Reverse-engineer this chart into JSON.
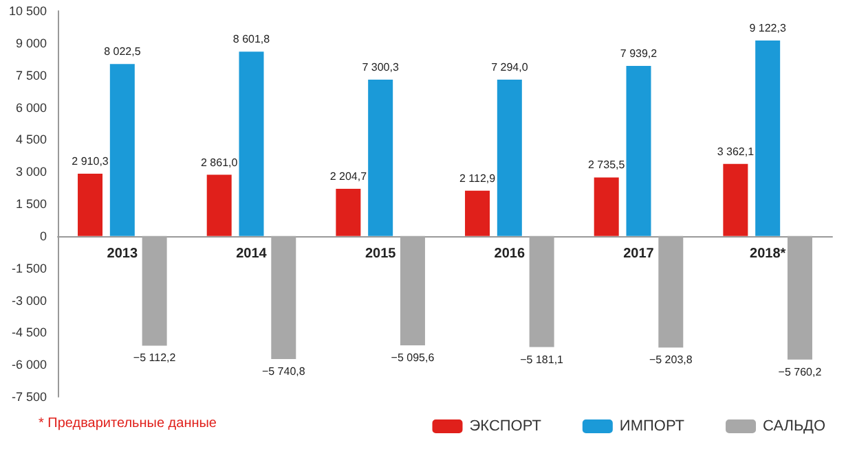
{
  "chart_data": {
    "type": "bar",
    "categories": [
      "2013",
      "2014",
      "2015",
      "2016",
      "2017",
      "2018*"
    ],
    "series": [
      {
        "name": "ЭКСПОРТ",
        "color": "#e0201b",
        "values": [
          2910.3,
          2861.0,
          2204.7,
          2112.9,
          2735.5,
          3362.1
        ],
        "value_labels": [
          "2 910,3",
          "2 861,0",
          "2 204,7",
          "2 112,9",
          "2 735,5",
          "3 362,1"
        ]
      },
      {
        "name": "ИМПОРТ",
        "color": "#1b9ad8",
        "values": [
          8022.5,
          8601.8,
          7300.3,
          7294.0,
          7939.2,
          9122.3
        ],
        "value_labels": [
          "8 022,5",
          "8 601,8",
          "7 300,3",
          "7 294,0",
          "7 939,2",
          "9 122,3"
        ]
      },
      {
        "name": "САЛЬДО",
        "color": "#a8a8a8",
        "values": [
          -5112.2,
          -5740.8,
          -5095.6,
          -5181.1,
          -5203.8,
          -5760.2
        ],
        "value_labels": [
          "−5 112,2",
          "−5 740,8",
          "−5 095,6",
          "−5 181,1",
          "−5 203,8",
          "−5 760,2"
        ]
      }
    ],
    "ylim": [
      -7500,
      10500
    ],
    "yticks": [
      {
        "value": -7500,
        "label": "-7 500"
      },
      {
        "value": -6000,
        "label": "-6 000"
      },
      {
        "value": -4500,
        "label": "-4 500"
      },
      {
        "value": -3000,
        "label": "-3 000"
      },
      {
        "value": -1500,
        "label": "-1 500"
      },
      0,
      {
        "value": 1500,
        "label": "1 500"
      },
      {
        "value": 3000,
        "label": "3 000"
      },
      {
        "value": 4500,
        "label": "4 500"
      },
      {
        "value": 6000,
        "label": "6 000"
      },
      {
        "value": 7500,
        "label": "7 500"
      },
      {
        "value": 9000,
        "label": "9 000"
      },
      {
        "value": 10500,
        "label": "10 500"
      }
    ],
    "grid": false,
    "legend": "bottom right",
    "annotations": [
      "* Предварительные данные"
    ]
  }
}
